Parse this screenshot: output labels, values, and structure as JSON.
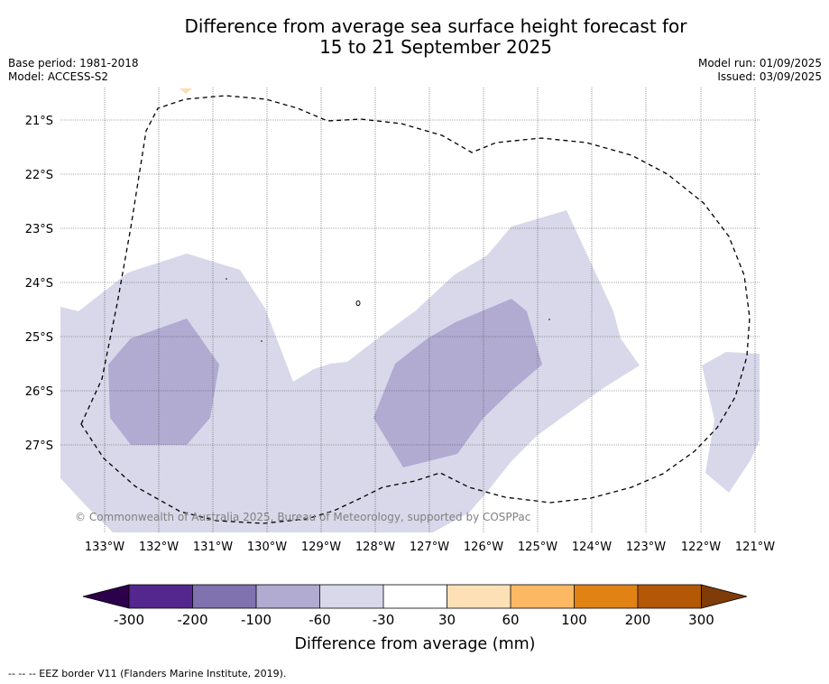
{
  "title": {
    "line1": "Difference from average sea surface height forecast for",
    "line2": "15 to 21 September 2025"
  },
  "meta": {
    "base_period": "Base period: 1981-2018",
    "model": "Model: ACCESS-S2",
    "model_run": "Model run: 01/09/2025",
    "issued": "Issued: 03/09/2025"
  },
  "map": {
    "lat_labels": [
      "21°S",
      "22°S",
      "23°S",
      "24°S",
      "25°S",
      "26°S",
      "27°S"
    ],
    "lon_labels": [
      "133°W",
      "132°W",
      "131°W",
      "130°W",
      "129°W",
      "128°W",
      "127°W",
      "126°W",
      "125°W",
      "124°W",
      "123°W",
      "122°W",
      "121°W"
    ],
    "copyright": "© Commonwealth of Australia 2025, Bureau of Meteorology, supported by COSPPac",
    "fill_colors": {
      "light_purple": "#d8d8ea",
      "mid_purple": "#b1aad1",
      "light_orange": "#fdddb2"
    }
  },
  "colorbar": {
    "title": "Difference from average (mm)",
    "tick_labels": [
      "-300",
      "-200",
      "-100",
      "-60",
      "-30",
      "30",
      "60",
      "100",
      "200",
      "300"
    ],
    "colors": [
      "#54278f",
      "#7f72ae",
      "#b1aad1",
      "#d8d8ea",
      "#ffffff",
      "#fee0b6",
      "#fdb863",
      "#e08214",
      "#b35806"
    ],
    "extend_low": "#2d004b",
    "extend_high": "#7f3b08"
  },
  "footnote": "-- -- -- EEZ border V11 (Flanders Marine Institute, 2019)."
}
